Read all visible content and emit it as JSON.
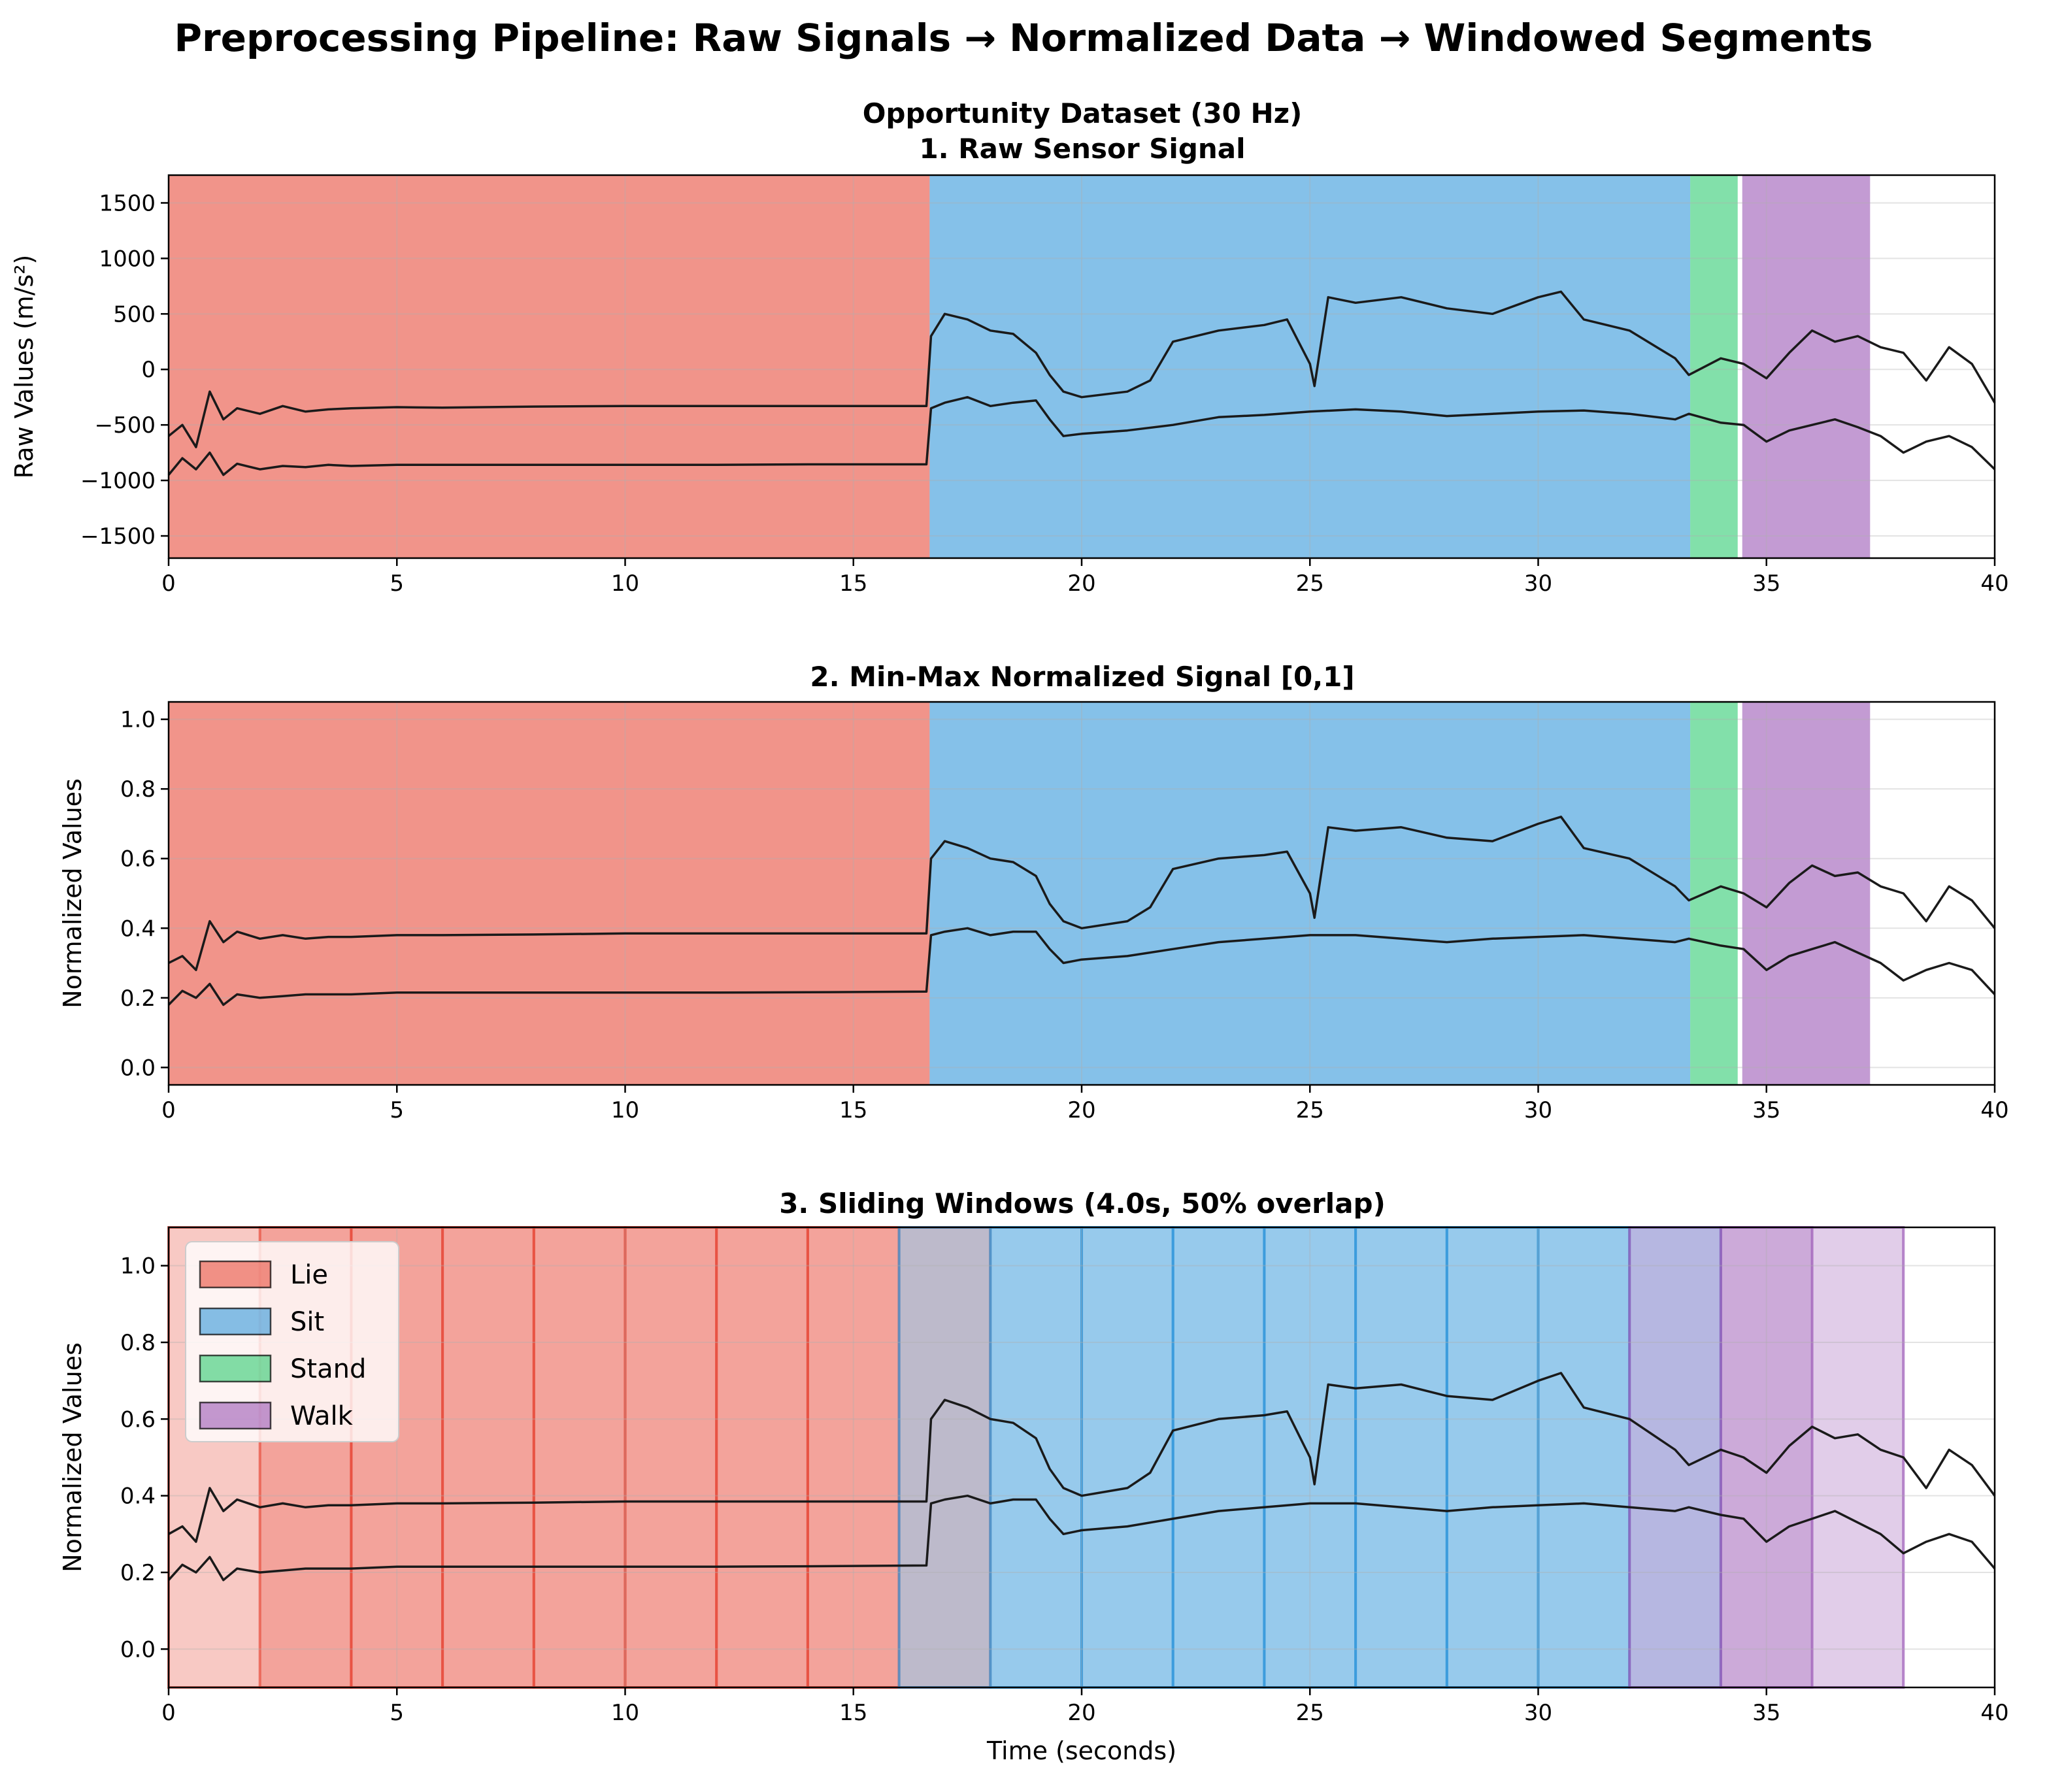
{
  "figure": {
    "title": "Preprocessing Pipeline: Raw Signals → Normalized Data → Windowed Segments",
    "dataset_label": "Opportunity Dataset (30 Hz)"
  },
  "colors": {
    "Lie": "#e74c3c",
    "Sit": "#3498db",
    "Stand": "#2ecc71",
    "Walk": "#9b59b6",
    "signal": "#1a1a1a"
  },
  "chart_data": [
    {
      "type": "line",
      "title": "1. Raw Sensor Signal",
      "xlabel": "",
      "ylabel": "Raw Values (m/s²)",
      "xlim": [
        0,
        40
      ],
      "ylim": [
        -1700,
        1750
      ],
      "xticks": [
        0,
        5,
        10,
        15,
        20,
        25,
        30,
        35,
        40
      ],
      "yticks": [
        -1500,
        -1000,
        -500,
        0,
        500,
        1000,
        1500
      ],
      "grid": true,
      "activity_regions": [
        {
          "label": "Lie",
          "start": 0,
          "end": 16.67
        },
        {
          "label": "Sit",
          "start": 16.67,
          "end": 33.33
        },
        {
          "label": "Stand",
          "start": 33.33,
          "end": 34.37
        },
        {
          "label": "Walk",
          "start": 34.47,
          "end": 37.27
        }
      ],
      "series": [
        {
          "x": [
            0,
            0.3,
            0.6,
            0.9,
            1.2,
            1.5,
            2,
            2.5,
            3,
            3.5,
            4,
            5,
            6,
            8,
            10,
            12,
            14,
            16.6,
            16.7,
            17,
            17.5,
            18,
            18.5,
            19,
            19.3,
            19.6,
            20,
            21,
            21.5,
            22,
            23,
            24,
            24.5,
            25,
            25.1,
            25.4,
            26,
            27,
            28,
            29,
            30,
            30.5,
            31,
            32,
            33,
            33.3,
            34,
            34.5,
            35,
            35.5,
            36,
            36.5,
            37,
            37.5,
            38,
            38.5,
            39,
            39.5,
            40
          ],
          "y": [
            -600,
            -500,
            -700,
            -200,
            -450,
            -350,
            -400,
            -330,
            -380,
            -360,
            -350,
            -340,
            -345,
            -335,
            -330,
            -330,
            -330,
            -330,
            300,
            500,
            450,
            350,
            320,
            150,
            -50,
            -200,
            -250,
            -200,
            -100,
            250,
            350,
            400,
            450,
            50,
            -150,
            650,
            600,
            650,
            550,
            500,
            650,
            700,
            450,
            350,
            100,
            -50,
            100,
            50,
            -80,
            150,
            350,
            250,
            300,
            200,
            150,
            -100,
            200,
            50,
            -300
          ]
        },
        {
          "x": [
            0,
            0.3,
            0.6,
            0.9,
            1.2,
            1.5,
            2,
            2.5,
            3,
            3.5,
            4,
            5,
            6,
            8,
            10,
            12,
            14,
            16.6,
            16.7,
            17,
            17.5,
            18,
            18.5,
            19,
            19.3,
            19.6,
            20,
            21,
            22,
            23,
            24,
            25,
            26,
            27,
            28,
            29,
            30,
            31,
            32,
            33,
            33.3,
            34,
            34.5,
            35,
            35.5,
            36,
            36.5,
            37,
            37.5,
            38,
            38.5,
            39,
            39.5,
            40
          ],
          "y": [
            -950,
            -800,
            -900,
            -750,
            -950,
            -850,
            -900,
            -870,
            -880,
            -860,
            -870,
            -860,
            -860,
            -860,
            -860,
            -860,
            -855,
            -855,
            -350,
            -300,
            -250,
            -330,
            -300,
            -280,
            -450,
            -600,
            -580,
            -550,
            -500,
            -430,
            -410,
            -380,
            -360,
            -380,
            -420,
            -400,
            -380,
            -370,
            -400,
            -450,
            -400,
            -480,
            -500,
            -650,
            -550,
            -500,
            -450,
            -520,
            -600,
            -750,
            -650,
            -600,
            -700,
            -900
          ]
        }
      ]
    },
    {
      "type": "line",
      "title": "2. Min-Max Normalized Signal [0,1]",
      "xlabel": "",
      "ylabel": "Normalized Values",
      "xlim": [
        0,
        40
      ],
      "ylim": [
        -0.05,
        1.05
      ],
      "xticks": [
        0,
        5,
        10,
        15,
        20,
        25,
        30,
        35,
        40
      ],
      "yticks": [
        0.0,
        0.2,
        0.4,
        0.6,
        0.8,
        1.0
      ],
      "grid": true,
      "activity_regions": [
        {
          "label": "Lie",
          "start": 0,
          "end": 16.67
        },
        {
          "label": "Sit",
          "start": 16.67,
          "end": 33.33
        },
        {
          "label": "Stand",
          "start": 33.33,
          "end": 34.37
        },
        {
          "label": "Walk",
          "start": 34.47,
          "end": 37.27
        }
      ],
      "series": [
        {
          "x": [
            0,
            0.3,
            0.6,
            0.9,
            1.2,
            1.5,
            2,
            2.5,
            3,
            3.5,
            4,
            5,
            6,
            8,
            10,
            12,
            14,
            16.6,
            16.7,
            17,
            17.5,
            18,
            18.5,
            19,
            19.3,
            19.6,
            20,
            21,
            21.5,
            22,
            23,
            24,
            24.5,
            25,
            25.1,
            25.4,
            26,
            27,
            28,
            29,
            30,
            30.5,
            31,
            32,
            33,
            33.3,
            34,
            34.5,
            35,
            35.5,
            36,
            36.5,
            37,
            37.5,
            38,
            38.5,
            39,
            39.5,
            40
          ],
          "y": [
            0.3,
            0.32,
            0.28,
            0.42,
            0.36,
            0.39,
            0.37,
            0.38,
            0.37,
            0.375,
            0.375,
            0.38,
            0.38,
            0.382,
            0.385,
            0.385,
            0.385,
            0.385,
            0.6,
            0.65,
            0.63,
            0.6,
            0.59,
            0.55,
            0.47,
            0.42,
            0.4,
            0.42,
            0.46,
            0.57,
            0.6,
            0.61,
            0.62,
            0.5,
            0.43,
            0.69,
            0.68,
            0.69,
            0.66,
            0.65,
            0.7,
            0.72,
            0.63,
            0.6,
            0.52,
            0.48,
            0.52,
            0.5,
            0.46,
            0.53,
            0.58,
            0.55,
            0.56,
            0.52,
            0.5,
            0.42,
            0.52,
            0.48,
            0.4
          ]
        },
        {
          "x": [
            0,
            0.3,
            0.6,
            0.9,
            1.2,
            1.5,
            2,
            2.5,
            3,
            3.5,
            4,
            5,
            6,
            8,
            10,
            12,
            14,
            16.6,
            16.7,
            17,
            17.5,
            18,
            18.5,
            19,
            19.3,
            19.6,
            20,
            21,
            22,
            23,
            24,
            25,
            26,
            27,
            28,
            29,
            30,
            31,
            32,
            33,
            33.3,
            34,
            34.5,
            35,
            35.5,
            36,
            36.5,
            37,
            37.5,
            38,
            38.5,
            39,
            39.5,
            40
          ],
          "y": [
            0.18,
            0.22,
            0.2,
            0.24,
            0.18,
            0.21,
            0.2,
            0.205,
            0.21,
            0.21,
            0.21,
            0.215,
            0.215,
            0.215,
            0.215,
            0.215,
            0.216,
            0.218,
            0.38,
            0.39,
            0.4,
            0.38,
            0.39,
            0.39,
            0.34,
            0.3,
            0.31,
            0.32,
            0.34,
            0.36,
            0.37,
            0.38,
            0.38,
            0.37,
            0.36,
            0.37,
            0.375,
            0.38,
            0.37,
            0.36,
            0.37,
            0.35,
            0.34,
            0.28,
            0.32,
            0.34,
            0.36,
            0.33,
            0.3,
            0.25,
            0.28,
            0.3,
            0.28,
            0.21
          ]
        }
      ]
    },
    {
      "type": "line",
      "title": "3. Sliding Windows (4.0s, 50% overlap)",
      "xlabel": "Time (seconds)",
      "ylabel": "Normalized Values",
      "xlim": [
        0,
        40
      ],
      "ylim": [
        -0.1,
        1.1
      ],
      "xticks": [
        0,
        5,
        10,
        15,
        20,
        25,
        30,
        35,
        40
      ],
      "yticks": [
        0.0,
        0.2,
        0.4,
        0.6,
        0.8,
        1.0
      ],
      "grid": true,
      "legend": {
        "position": "top-left",
        "entries": [
          "Lie",
          "Sit",
          "Stand",
          "Walk"
        ]
      },
      "windows": [
        {
          "label": "Lie",
          "start": 0,
          "end": 4
        },
        {
          "label": "Lie",
          "start": 2,
          "end": 6
        },
        {
          "label": "Lie",
          "start": 4,
          "end": 8
        },
        {
          "label": "Lie",
          "start": 6,
          "end": 10
        },
        {
          "label": "Lie",
          "start": 8,
          "end": 12
        },
        {
          "label": "Lie",
          "start": 10,
          "end": 14
        },
        {
          "label": "Lie",
          "start": 12,
          "end": 16
        },
        {
          "label": "Lie",
          "start": 14,
          "end": 18
        },
        {
          "label": "Sit",
          "start": 16,
          "end": 20
        },
        {
          "label": "Sit",
          "start": 18,
          "end": 22
        },
        {
          "label": "Sit",
          "start": 20,
          "end": 24
        },
        {
          "label": "Sit",
          "start": 22,
          "end": 26
        },
        {
          "label": "Sit",
          "start": 24,
          "end": 28
        },
        {
          "label": "Sit",
          "start": 26,
          "end": 30
        },
        {
          "label": "Sit",
          "start": 28,
          "end": 32
        },
        {
          "label": "Sit",
          "start": 30,
          "end": 34
        },
        {
          "label": "Walk",
          "start": 32,
          "end": 36
        },
        {
          "label": "Walk",
          "start": 34,
          "end": 38
        }
      ],
      "series": [
        {
          "x": [
            0,
            0.3,
            0.6,
            0.9,
            1.2,
            1.5,
            2,
            2.5,
            3,
            3.5,
            4,
            5,
            6,
            8,
            10,
            12,
            14,
            16.6,
            16.7,
            17,
            17.5,
            18,
            18.5,
            19,
            19.3,
            19.6,
            20,
            21,
            21.5,
            22,
            23,
            24,
            24.5,
            25,
            25.1,
            25.4,
            26,
            27,
            28,
            29,
            30,
            30.5,
            31,
            32,
            33,
            33.3,
            34,
            34.5,
            35,
            35.5,
            36,
            36.5,
            37,
            37.5,
            38,
            38.5,
            39,
            39.5,
            40
          ],
          "y": [
            0.3,
            0.32,
            0.28,
            0.42,
            0.36,
            0.39,
            0.37,
            0.38,
            0.37,
            0.375,
            0.375,
            0.38,
            0.38,
            0.382,
            0.385,
            0.385,
            0.385,
            0.385,
            0.6,
            0.65,
            0.63,
            0.6,
            0.59,
            0.55,
            0.47,
            0.42,
            0.4,
            0.42,
            0.46,
            0.57,
            0.6,
            0.61,
            0.62,
            0.5,
            0.43,
            0.69,
            0.68,
            0.69,
            0.66,
            0.65,
            0.7,
            0.72,
            0.63,
            0.6,
            0.52,
            0.48,
            0.52,
            0.5,
            0.46,
            0.53,
            0.58,
            0.55,
            0.56,
            0.52,
            0.5,
            0.42,
            0.52,
            0.48,
            0.4
          ]
        },
        {
          "x": [
            0,
            0.3,
            0.6,
            0.9,
            1.2,
            1.5,
            2,
            2.5,
            3,
            3.5,
            4,
            5,
            6,
            8,
            10,
            12,
            14,
            16.6,
            16.7,
            17,
            17.5,
            18,
            18.5,
            19,
            19.3,
            19.6,
            20,
            21,
            22,
            23,
            24,
            25,
            26,
            27,
            28,
            29,
            30,
            31,
            32,
            33,
            33.3,
            34,
            34.5,
            35,
            35.5,
            36,
            36.5,
            37,
            37.5,
            38,
            38.5,
            39,
            39.5,
            40
          ],
          "y": [
            0.18,
            0.22,
            0.2,
            0.24,
            0.18,
            0.21,
            0.2,
            0.205,
            0.21,
            0.21,
            0.21,
            0.215,
            0.215,
            0.215,
            0.215,
            0.215,
            0.216,
            0.218,
            0.38,
            0.39,
            0.4,
            0.38,
            0.39,
            0.39,
            0.34,
            0.3,
            0.31,
            0.32,
            0.34,
            0.36,
            0.37,
            0.38,
            0.38,
            0.37,
            0.36,
            0.37,
            0.375,
            0.38,
            0.37,
            0.36,
            0.37,
            0.35,
            0.34,
            0.28,
            0.32,
            0.34,
            0.36,
            0.33,
            0.3,
            0.25,
            0.28,
            0.3,
            0.28,
            0.21
          ]
        }
      ]
    }
  ]
}
